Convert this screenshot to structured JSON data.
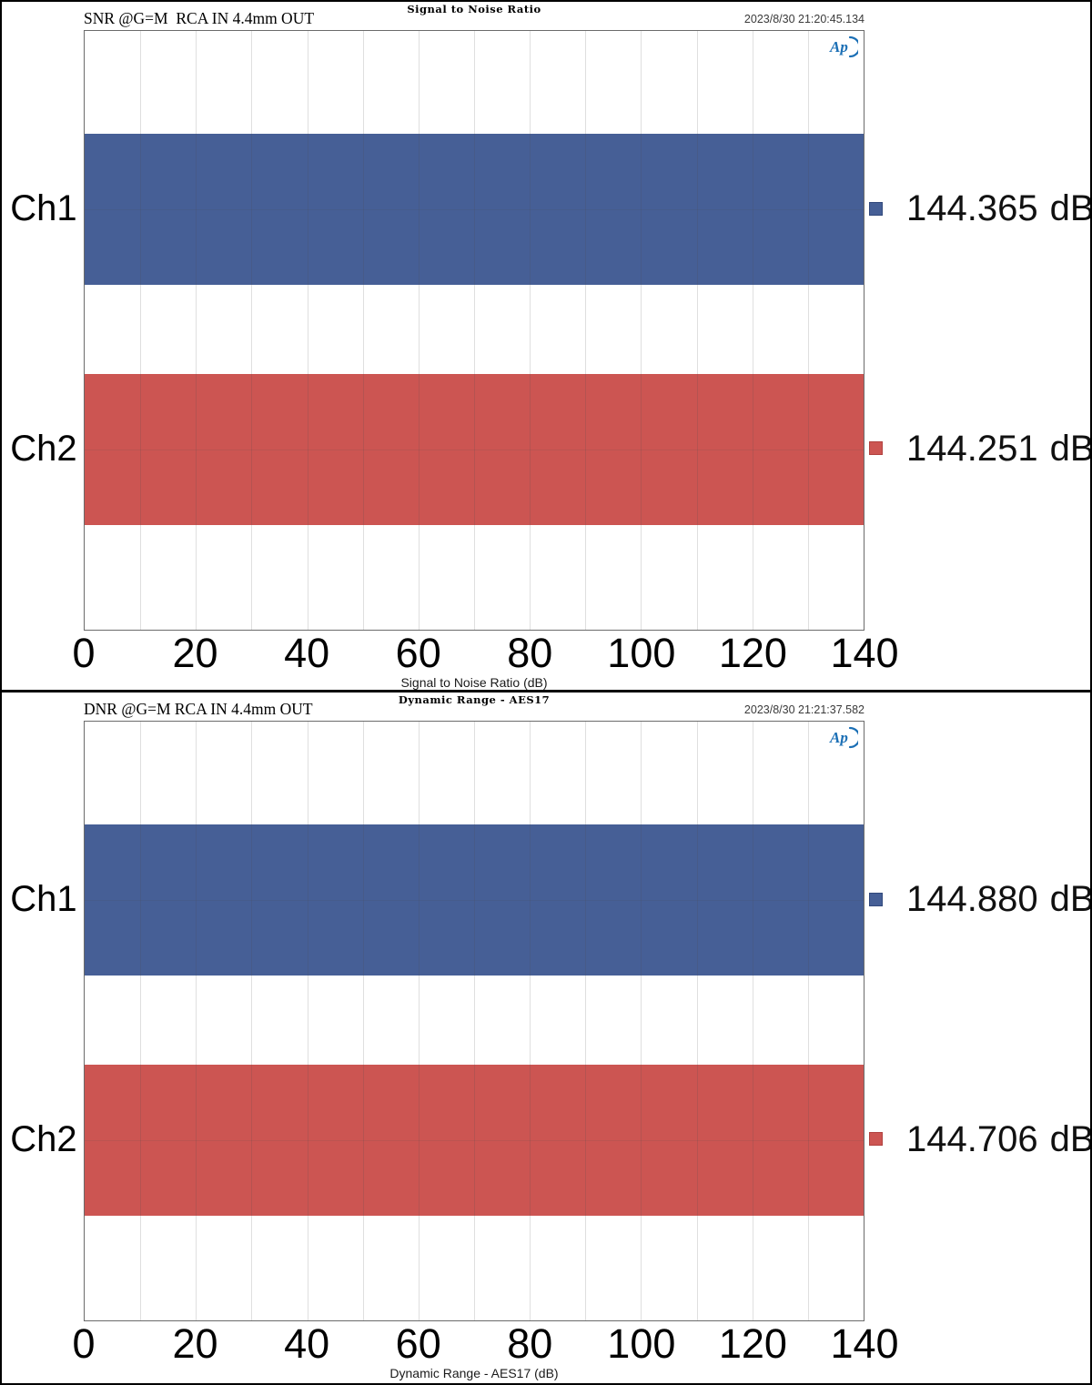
{
  "window": {
    "background": "#ffffff",
    "border_color": "#000000"
  },
  "icons": {
    "ap_logo": "Ap)",
    "ap_logo_color": "#1b6fb5"
  },
  "colors": {
    "ch1_bar": "#465f96",
    "ch2_bar": "#cc5552",
    "ch1_swatch_border": "#32497c",
    "ch2_swatch_border": "#b14240",
    "gridline": "#d9d9d9",
    "plot_border": "#6b6b6b"
  },
  "chart_data": [
    {
      "type": "bar",
      "orientation": "horizontal",
      "title": "Signal to Noise Ratio",
      "header_label": "SNR @G=M  RCA IN 4.4mm OUT",
      "timestamp": "2023/8/30 21:20:45.134",
      "xlabel": "Signal to Noise Ratio (dB)",
      "xlim": [
        0,
        140
      ],
      "xticks": [
        0,
        20,
        40,
        60,
        80,
        100,
        120,
        140
      ],
      "x_gridline_step": 10,
      "grid": true,
      "legend_position": "right",
      "categories": [
        "Ch1",
        "Ch2"
      ],
      "values": [
        144.365,
        144.251
      ],
      "unit": "dB",
      "value_labels": [
        "144.365",
        "144.251"
      ],
      "bar_colors": [
        "#465f96",
        "#cc5552"
      ],
      "swatch_borders": [
        "#32497c",
        "#b14240"
      ]
    },
    {
      "type": "bar",
      "orientation": "horizontal",
      "title": "Dynamic Range - AES17",
      "header_label": "DNR @G=M RCA IN 4.4mm OUT",
      "timestamp": "2023/8/30 21:21:37.582",
      "xlabel": "Dynamic Range - AES17 (dB)",
      "xlim": [
        0,
        140
      ],
      "xticks": [
        0,
        20,
        40,
        60,
        80,
        100,
        120,
        140
      ],
      "x_gridline_step": 10,
      "grid": true,
      "legend_position": "right",
      "categories": [
        "Ch1",
        "Ch2"
      ],
      "values": [
        144.88,
        144.706
      ],
      "unit": "dB",
      "value_labels": [
        "144.880",
        "144.706"
      ],
      "bar_colors": [
        "#465f96",
        "#cc5552"
      ],
      "swatch_borders": [
        "#32497c",
        "#b14240"
      ]
    }
  ]
}
